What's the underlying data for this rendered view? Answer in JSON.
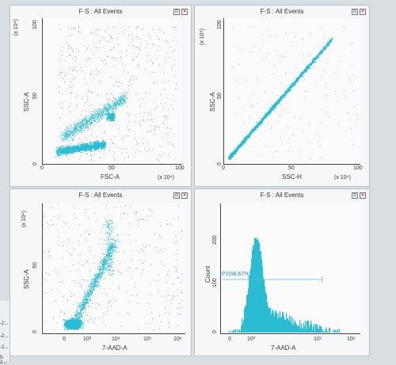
{
  "panels": [
    {
      "title": "F-S : All Events",
      "xlabel": "FSC-A",
      "ylabel": "SSC-A",
      "xscale": "(x 10⁴)",
      "yscale": "(x 10⁴)",
      "xticks": [
        "0",
        "50",
        "100"
      ],
      "yticks": [
        "0",
        "50",
        "100"
      ]
    },
    {
      "title": "F-S : All Events",
      "xlabel": "SSC-H",
      "ylabel": "SSC-A",
      "xscale": "(x 10⁴)",
      "yscale": "(x 10⁴)",
      "xticks": [
        "0",
        "50",
        "100"
      ],
      "yticks": [
        "0",
        "50",
        "100"
      ]
    },
    {
      "title": "F-S : All Events",
      "xlabel": "7-AAD-A",
      "ylabel": "SSC-A",
      "yscale": "(x 10⁴)",
      "xticks": [
        "0",
        "10²",
        "10⁴",
        "10⁵",
        "10⁶"
      ],
      "yticks": [
        "0",
        "50",
        "100"
      ]
    },
    {
      "title": "F-S : All Events",
      "xlabel": "7-AAD-A",
      "ylabel": "Count",
      "xticks": [
        "0",
        "10³",
        "10⁵",
        "10⁶"
      ],
      "yticks": [
        "0",
        "100",
        "200"
      ],
      "gate_label": "P2(98.67%)"
    }
  ],
  "left_strip": [
    "-2...",
    "-2...",
    "-2...",
    "5-2..."
  ],
  "colors": {
    "events": "#2bbcd4",
    "sparse": "#5a6a70"
  }
}
